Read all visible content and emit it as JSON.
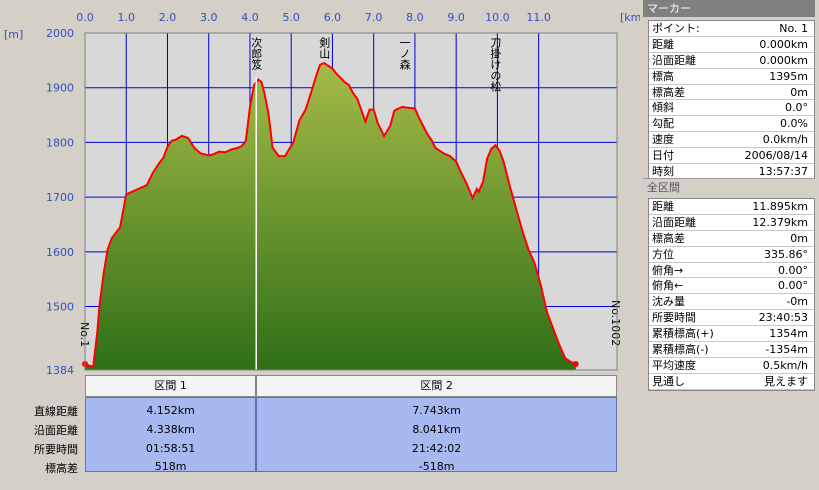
{
  "chart_data": {
    "type": "area",
    "xlabel": "[km]",
    "ylabel": "[m]",
    "xlim": [
      0,
      12.9
    ],
    "ylim": [
      1384,
      2000
    ],
    "x_ticks": [
      "0.0",
      "1.0",
      "2.0",
      "3.0",
      "4.0",
      "5.0",
      "6.0",
      "7.0",
      "8.0",
      "9.0",
      "10.0",
      "11.0"
    ],
    "y_ticks": [
      "2000",
      "1900",
      "1800",
      "1700",
      "1600",
      "1500",
      "1384"
    ],
    "colors": {
      "fill_top": "#a6bb48",
      "fill_bottom": "#2f6f16",
      "line": "#ff0000",
      "plot_bg": "#d8d8d8",
      "grid": "#0000d0"
    },
    "series": [
      {
        "x": [
          0.0,
          0.1,
          0.2,
          0.3,
          0.35,
          0.45,
          0.55,
          0.65,
          0.75,
          0.85,
          1.0,
          1.2,
          1.5,
          1.65,
          1.8,
          1.9,
          2.0,
          2.1,
          2.2,
          2.35,
          2.5,
          2.65,
          2.8,
          3.0,
          3.1,
          3.25,
          3.4,
          3.55,
          3.7,
          3.8,
          3.9,
          4.0,
          4.1,
          4.2,
          4.28,
          4.35,
          4.45,
          4.55,
          4.7,
          4.85,
          5.05,
          5.2,
          5.35,
          5.5,
          5.6,
          5.7,
          5.8,
          5.9,
          6.0,
          6.1,
          6.2,
          6.3,
          6.4,
          6.5,
          6.6,
          6.8,
          6.9,
          7.0,
          7.1,
          7.25,
          7.4,
          7.5,
          7.6,
          7.7,
          7.85,
          8.0,
          8.1,
          8.2,
          8.3,
          8.4,
          8.5,
          8.7,
          8.85,
          9.0,
          9.1,
          9.25,
          9.4,
          9.5,
          9.55,
          9.65,
          9.75,
          9.85,
          9.95,
          10.05,
          10.15,
          10.3,
          10.45,
          10.6,
          10.75,
          10.9,
          11.05,
          11.2,
          11.35,
          11.5,
          11.65,
          11.8,
          11.9
        ],
        "y": [
          1395,
          1392,
          1390,
          1455,
          1500,
          1560,
          1605,
          1625,
          1635,
          1645,
          1705,
          1712,
          1722,
          1745,
          1762,
          1772,
          1792,
          1803,
          1805,
          1812,
          1808,
          1790,
          1780,
          1776,
          1778,
          1783,
          1782,
          1787,
          1790,
          1793,
          1803,
          1865,
          1905,
          1915,
          1910,
          1890,
          1852,
          1790,
          1775,
          1775,
          1800,
          1840,
          1860,
          1895,
          1920,
          1942,
          1945,
          1940,
          1935,
          1925,
          1918,
          1910,
          1905,
          1890,
          1880,
          1838,
          1860,
          1860,
          1835,
          1812,
          1830,
          1858,
          1862,
          1865,
          1863,
          1862,
          1845,
          1830,
          1815,
          1805,
          1790,
          1780,
          1775,
          1765,
          1748,
          1725,
          1698,
          1715,
          1710,
          1728,
          1770,
          1788,
          1795,
          1785,
          1765,
          1720,
          1680,
          1640,
          1605,
          1580,
          1540,
          1490,
          1460,
          1430,
          1405,
          1398,
          1395
        ]
      }
    ],
    "segment_boundary_x": 4.152,
    "start_marker_label": "No.1",
    "end_marker_label": "No.1002",
    "annotations": [
      {
        "text": "次郎笈",
        "x": 4.152
      },
      {
        "text": "剣山",
        "x": 5.8
      },
      {
        "text": "一ノ森",
        "x": 7.75
      },
      {
        "text": "刀掛けの松",
        "x": 9.95
      }
    ]
  },
  "segments": {
    "row_labels": [
      "直線距離",
      "沿面距離",
      "所要時間",
      "標高差"
    ],
    "columns": [
      {
        "header": "区間 1",
        "values": [
          "4.152km",
          "4.338km",
          "01:58:51",
          "518m"
        ]
      },
      {
        "header": "区間 2",
        "values": [
          "7.743km",
          "8.041km",
          "21:42:02",
          "-518m"
        ]
      }
    ]
  },
  "marker_panel": {
    "title": "マーカー",
    "rows": [
      {
        "k": "ポイント:",
        "v": "No. 1"
      },
      {
        "k": "距離",
        "v": "0.000km"
      },
      {
        "k": "沿面距離",
        "v": "0.000km"
      },
      {
        "k": "標高",
        "v": "1395m"
      },
      {
        "k": "標高差",
        "v": "0m"
      },
      {
        "k": "傾斜",
        "v": "0.0°"
      },
      {
        "k": "勾配",
        "v": "0.0%"
      },
      {
        "k": "速度",
        "v": "0.0km/h"
      },
      {
        "k": "日付",
        "v": "2006/08/14"
      },
      {
        "k": "時刻",
        "v": "13:57:37"
      }
    ]
  },
  "all_panel": {
    "title": "全区間",
    "rows": [
      {
        "k": "距離",
        "v": "11.895km"
      },
      {
        "k": "沿面距離",
        "v": "12.379km"
      },
      {
        "k": "標高差",
        "v": "0m"
      },
      {
        "k": "方位",
        "v": "335.86°"
      },
      {
        "k": "俯角→",
        "v": "0.00°"
      },
      {
        "k": "俯角←",
        "v": "0.00°"
      },
      {
        "k": "沈み量",
        "v": "-0m"
      },
      {
        "k": "所要時間",
        "v": "23:40:53"
      },
      {
        "k": "累積標高(+)",
        "v": "1354m"
      },
      {
        "k": "累積標高(-)",
        "v": "-1354m"
      },
      {
        "k": "平均速度",
        "v": "0.5km/h"
      },
      {
        "k": "見通し",
        "v": "見えます"
      }
    ]
  }
}
